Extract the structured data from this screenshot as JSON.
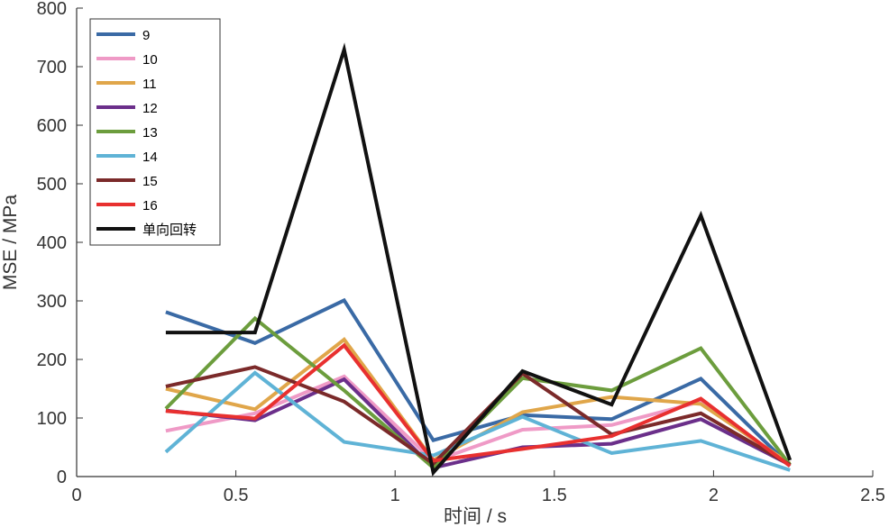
{
  "chart_data": {
    "type": "line",
    "xlabel": "时间 / s",
    "ylabel": "MSE / MPa",
    "xlim": [
      0,
      2.5
    ],
    "ylim": [
      0,
      800
    ],
    "xticks": [
      0,
      0.5,
      1,
      1.5,
      2,
      2.5
    ],
    "xtick_labels": [
      "0",
      "0.5",
      "1",
      "1.5",
      "2",
      "2.5"
    ],
    "yticks": [
      0,
      100,
      200,
      300,
      400,
      500,
      600,
      700,
      800
    ],
    "ytick_labels": [
      "0",
      "100",
      "200",
      "300",
      "400",
      "500",
      "600",
      "700",
      "800"
    ],
    "grid": false,
    "legend_position": "top-left",
    "x": [
      0.28,
      0.56,
      0.84,
      1.12,
      1.4,
      1.68,
      1.96,
      2.24
    ],
    "series": [
      {
        "name": "9",
        "color": "#3a6aa5",
        "values": [
          281,
          228,
          301,
          62,
          105,
          98,
          167,
          18
        ]
      },
      {
        "name": "10",
        "color": "#ef9ac6",
        "values": [
          78,
          108,
          171,
          26,
          80,
          88,
          128,
          18
        ]
      },
      {
        "name": "11",
        "color": "#e0a64a",
        "values": [
          150,
          115,
          234,
          28,
          110,
          136,
          124,
          22
        ]
      },
      {
        "name": "12",
        "color": "#6b2f8a",
        "values": [
          113,
          96,
          166,
          15,
          50,
          56,
          98,
          20
        ]
      },
      {
        "name": "13",
        "color": "#6c9d3d",
        "values": [
          116,
          270,
          147,
          15,
          168,
          147,
          219,
          20
        ]
      },
      {
        "name": "14",
        "color": "#5fb3d6",
        "values": [
          42,
          177,
          59,
          36,
          102,
          40,
          61,
          11
        ]
      },
      {
        "name": "15",
        "color": "#7b2a2a",
        "values": [
          154,
          187,
          128,
          22,
          176,
          72,
          108,
          20
        ]
      },
      {
        "name": "16",
        "color": "#e8302f",
        "values": [
          112,
          99,
          224,
          27,
          47,
          69,
          133,
          18
        ]
      },
      {
        "name": "单向回转",
        "color": "#111111",
        "values": [
          246,
          246,
          729,
          7,
          180,
          123,
          446,
          28
        ]
      }
    ]
  }
}
